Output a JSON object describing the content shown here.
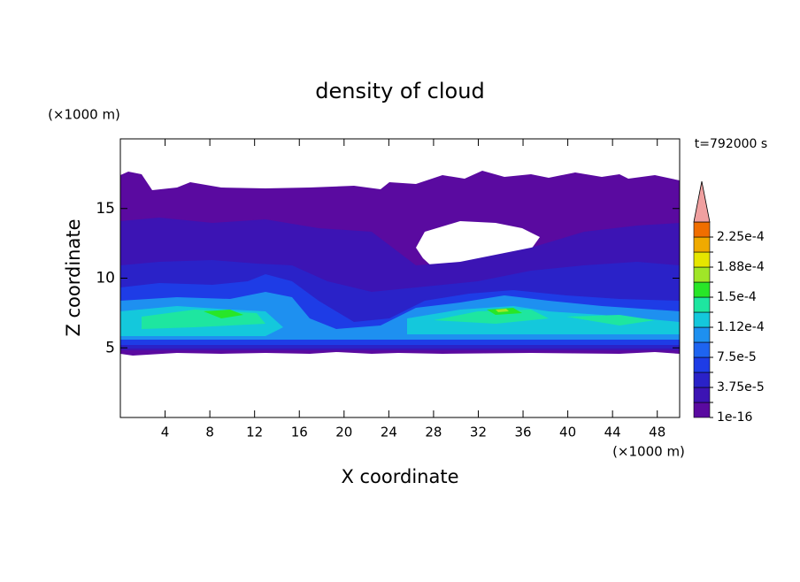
{
  "chart_data": {
    "type": "contour",
    "title": "density of cloud",
    "xlabel": "X coordinate",
    "ylabel": "Z coordinate",
    "xunit": "(×1000 m)",
    "yunit": "(×1000 m)",
    "time_label": "t=792000 s",
    "xlim": [
      0,
      50
    ],
    "ylim": [
      0,
      20
    ],
    "xticks": [
      4,
      8,
      12,
      16,
      20,
      24,
      28,
      32,
      36,
      40,
      44,
      48
    ],
    "yticks": [
      5,
      10,
      15
    ],
    "levels": [
      {
        "value": 1e-16,
        "label": "1e-16"
      },
      1.875e-05,
      {
        "value": 3.75e-05,
        "label": "3.75e-5"
      },
      5.625e-05,
      {
        "value": 7.5e-05,
        "label": "7.5e-5"
      },
      9.375e-05,
      {
        "value": 0.0001125,
        "label": "1.12e-4"
      },
      0.00013125,
      {
        "value": 0.00015,
        "label": "1.5e-4"
      },
      0.00016875,
      {
        "value": 0.0001875,
        "label": "1.88e-4"
      },
      0.00020625,
      {
        "value": 0.000225,
        "label": "2.25e-4"
      }
    ],
    "colors": [
      "#5a0aa0",
      "#3c14b4",
      "#2a22c8",
      "#1e3ce6",
      "#1e64f0",
      "#1e90f0",
      "#14c8dc",
      "#1ee6a0",
      "#28e628",
      "#a0e628",
      "#e6e600",
      "#f0aa00",
      "#f06e00",
      "#e62814"
    ],
    "extend_color": "#f0a0a0"
  }
}
